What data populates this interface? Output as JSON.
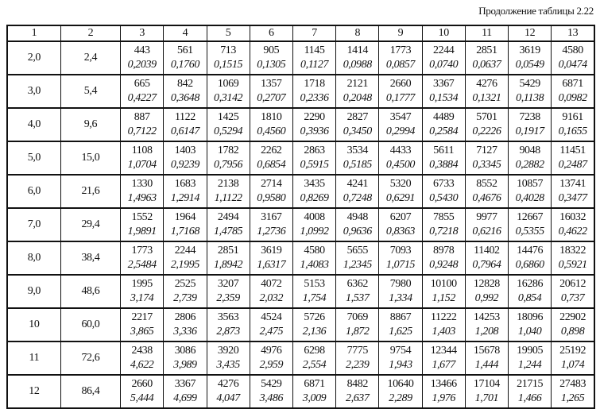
{
  "caption": "Продолжение таблицы 2.22",
  "headers": [
    "1",
    "2",
    "3",
    "4",
    "5",
    "6",
    "7",
    "8",
    "9",
    "10",
    "11",
    "12",
    "13"
  ],
  "rows": [
    {
      "c1": "2,0",
      "c2": "2,4",
      "cells": [
        [
          "443",
          "0,2039"
        ],
        [
          "561",
          "0,1760"
        ],
        [
          "713",
          "0,1515"
        ],
        [
          "905",
          "0,1305"
        ],
        [
          "1145",
          "0,1127"
        ],
        [
          "1414",
          "0,0988"
        ],
        [
          "1773",
          "0,0857"
        ],
        [
          "2244",
          "0,0740"
        ],
        [
          "2851",
          "0,0637"
        ],
        [
          "3619",
          "0,0549"
        ],
        [
          "4580",
          "0,0474"
        ]
      ]
    },
    {
      "c1": "3,0",
      "c2": "5,4",
      "cells": [
        [
          "665",
          "0,4227"
        ],
        [
          "842",
          "0,3648"
        ],
        [
          "1069",
          "0,3142"
        ],
        [
          "1357",
          "0,2707"
        ],
        [
          "1718",
          "0,2336"
        ],
        [
          "2121",
          "0,2048"
        ],
        [
          "2660",
          "0,1777"
        ],
        [
          "3367",
          "0,1534"
        ],
        [
          "4276",
          "0,1321"
        ],
        [
          "5429",
          "0,1138"
        ],
        [
          "6871",
          "0,0982"
        ]
      ]
    },
    {
      "c1": "4,0",
      "c2": "9,6",
      "cells": [
        [
          "887",
          "0,7122"
        ],
        [
          "1122",
          "0,6147"
        ],
        [
          "1425",
          "0,5294"
        ],
        [
          "1810",
          "0,4560"
        ],
        [
          "2290",
          "0,3936"
        ],
        [
          "2827",
          "0,3450"
        ],
        [
          "3547",
          "0,2994"
        ],
        [
          "4489",
          "0,2584"
        ],
        [
          "5701",
          "0,2226"
        ],
        [
          "7238",
          "0,1917"
        ],
        [
          "9161",
          "0,1655"
        ]
      ]
    },
    {
      "c1": "5,0",
      "c2": "15,0",
      "cells": [
        [
          "1108",
          "1,0704"
        ],
        [
          "1403",
          "0,9239"
        ],
        [
          "1782",
          "0,7956"
        ],
        [
          "2262",
          "0,6854"
        ],
        [
          "2863",
          "0,5915"
        ],
        [
          "3534",
          "0,5185"
        ],
        [
          "4433",
          "0,4500"
        ],
        [
          "5611",
          "0,3884"
        ],
        [
          "7127",
          "0,3345"
        ],
        [
          "9048",
          "0,2882"
        ],
        [
          "11451",
          "0,2487"
        ]
      ]
    },
    {
      "c1": "6,0",
      "c2": "21,6",
      "cells": [
        [
          "1330",
          "1,4963"
        ],
        [
          "1683",
          "1,2914"
        ],
        [
          "2138",
          "1,1122"
        ],
        [
          "2714",
          "0,9580"
        ],
        [
          "3435",
          "0,8269"
        ],
        [
          "4241",
          "0,7248"
        ],
        [
          "5320",
          "0,6291"
        ],
        [
          "6733",
          "0,5430"
        ],
        [
          "8552",
          "0,4676"
        ],
        [
          "10857",
          "0,4028"
        ],
        [
          "13741",
          "0,3477"
        ]
      ]
    },
    {
      "c1": "7,0",
      "c2": "29,4",
      "cells": [
        [
          "1552",
          "1,9891"
        ],
        [
          "1964",
          "1,7168"
        ],
        [
          "2494",
          "1,4785"
        ],
        [
          "3167",
          "1,2736"
        ],
        [
          "4008",
          "1,0992"
        ],
        [
          "4948",
          "0,9636"
        ],
        [
          "6207",
          "0,8363"
        ],
        [
          "7855",
          "0,7218"
        ],
        [
          "9977",
          "0,6216"
        ],
        [
          "12667",
          "0,5355"
        ],
        [
          "16032",
          "0,4622"
        ]
      ]
    },
    {
      "c1": "8,0",
      "c2": "38,4",
      "cells": [
        [
          "1773",
          "2,5484"
        ],
        [
          "2244",
          "2,1995"
        ],
        [
          "2851",
          "1,8942"
        ],
        [
          "3619",
          "1,6317"
        ],
        [
          "4580",
          "1,4083"
        ],
        [
          "5655",
          "1,2345"
        ],
        [
          "7093",
          "1,0715"
        ],
        [
          "8978",
          "0,9248"
        ],
        [
          "11402",
          "0,7964"
        ],
        [
          "14476",
          "0,6860"
        ],
        [
          "18322",
          "0,5921"
        ]
      ]
    },
    {
      "c1": "9,0",
      "c2": "48,6",
      "cells": [
        [
          "1995",
          "3,174"
        ],
        [
          "2525",
          "2,739"
        ],
        [
          "3207",
          "2,359"
        ],
        [
          "4072",
          "2,032"
        ],
        [
          "5153",
          "1,754"
        ],
        [
          "6362",
          "1,537"
        ],
        [
          "7980",
          "1,334"
        ],
        [
          "10100",
          "1,152"
        ],
        [
          "12828",
          "0,992"
        ],
        [
          "16286",
          "0,854"
        ],
        [
          "20612",
          "0,737"
        ]
      ]
    },
    {
      "c1": "10",
      "c2": "60,0",
      "cells": [
        [
          "2217",
          "3,865"
        ],
        [
          "2806",
          "3,336"
        ],
        [
          "3563",
          "2,873"
        ],
        [
          "4524",
          "2,475"
        ],
        [
          "5726",
          "2,136"
        ],
        [
          "7069",
          "1,872"
        ],
        [
          "8867",
          "1,625"
        ],
        [
          "11222",
          "1,403"
        ],
        [
          "14253",
          "1,208"
        ],
        [
          "18096",
          "1,040"
        ],
        [
          "22902",
          "0,898"
        ]
      ]
    },
    {
      "c1": "11",
      "c2": "72,6",
      "cells": [
        [
          "2438",
          "4,622"
        ],
        [
          "3086",
          "3,989"
        ],
        [
          "3920",
          "3,435"
        ],
        [
          "4976",
          "2,959"
        ],
        [
          "6298",
          "2,554"
        ],
        [
          "7775",
          "2,239"
        ],
        [
          "9754",
          "1,943"
        ],
        [
          "12344",
          "1,677"
        ],
        [
          "15678",
          "1,444"
        ],
        [
          "19905",
          "1,244"
        ],
        [
          "25192",
          "1,074"
        ]
      ]
    },
    {
      "c1": "12",
      "c2": "86,4",
      "cells": [
        [
          "2660",
          "5,444"
        ],
        [
          "3367",
          "4,699"
        ],
        [
          "4276",
          "4,047"
        ],
        [
          "5429",
          "3,486"
        ],
        [
          "6871",
          "3,009"
        ],
        [
          "8482",
          "2,637"
        ],
        [
          "10640",
          "2,289"
        ],
        [
          "13466",
          "1,976"
        ],
        [
          "17104",
          "1,701"
        ],
        [
          "21715",
          "1,466"
        ],
        [
          "27483",
          "1,265"
        ]
      ]
    }
  ]
}
